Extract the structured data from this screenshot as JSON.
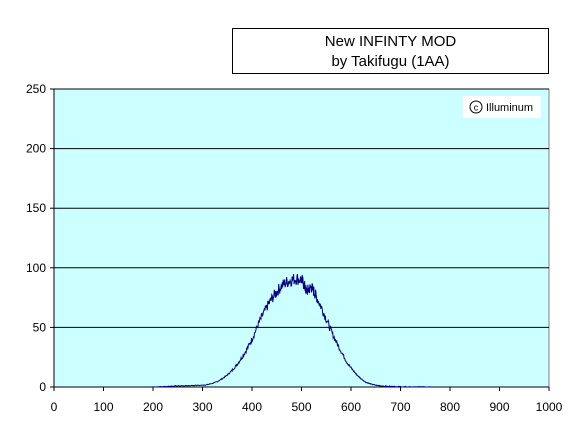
{
  "chart_data": {
    "type": "line",
    "title": "New INFINTY MOD",
    "subtitle": "by Takifugu (1AA)",
    "xlabel": "",
    "ylabel": "",
    "xlim": [
      0,
      1000
    ],
    "ylim": [
      0,
      250
    ],
    "xticks": [
      0,
      100,
      200,
      300,
      400,
      500,
      600,
      700,
      800,
      900,
      1000
    ],
    "yticks": [
      0,
      50,
      100,
      150,
      200,
      250
    ],
    "grid": "horizontal",
    "legend": "none",
    "watermark": "Illuminum",
    "colors": {
      "plot_background": "#ccffff",
      "line": "#000080",
      "grid": "#000000"
    },
    "series": [
      {
        "x": [
          200,
          220,
          240,
          260,
          280,
          300,
          310,
          320,
          330,
          340,
          350,
          360,
          370,
          380,
          390,
          400,
          410,
          420,
          430,
          440,
          450,
          460,
          470,
          480,
          490,
          500,
          505,
          510,
          515,
          520,
          525,
          530,
          540,
          550,
          560,
          570,
          580,
          590,
          600,
          610,
          620,
          630,
          640,
          650,
          660,
          680,
          700,
          720,
          740,
          760
        ],
        "y": [
          0,
          0.3,
          0.8,
          1,
          1.3,
          1.5,
          2,
          3,
          4.5,
          7,
          10,
          14,
          19,
          25,
          32,
          40,
          50,
          59,
          67,
          74,
          80,
          85,
          88,
          90,
          91,
          90,
          86,
          80,
          82,
          84,
          80,
          76,
          67,
          57,
          47,
          38,
          30,
          22,
          16,
          11,
          7,
          4,
          2.5,
          1.5,
          1,
          0.5,
          0.3,
          0.2,
          0.1,
          0
        ]
      }
    ]
  }
}
